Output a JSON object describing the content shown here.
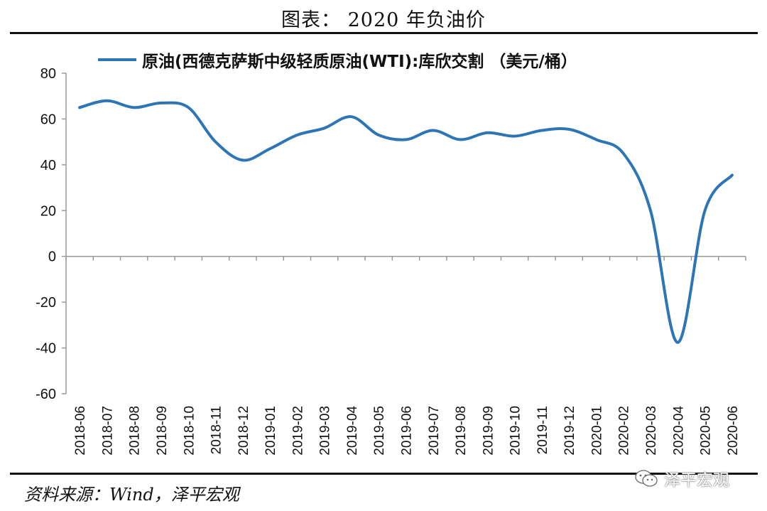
{
  "header": {
    "title": "图表： 2020 年负油价"
  },
  "legend": {
    "label": "原油(西德克萨斯中级轻质原油(WTI):库欣交割 （美元/桶）",
    "color": "#2e75b6"
  },
  "footer": {
    "source": "资料来源：Wind，泽平宏观",
    "watermark": "泽平宏观",
    "watermark_icon": "wechat-icon"
  },
  "chart_data": {
    "type": "line",
    "title": "2020 年负油价",
    "x": [
      "2018-06",
      "2018-07",
      "2018-08",
      "2018-09",
      "2018-10",
      "2018-11",
      "2018-12",
      "2019-01",
      "2019-02",
      "2019-03",
      "2019-04",
      "2019-05",
      "2019-06",
      "2019-07",
      "2019-08",
      "2019-09",
      "2019-10",
      "2019-11",
      "2019-12",
      "2020-01",
      "2020-02",
      "2020-03",
      "2020-04",
      "2020-05",
      "2020-06"
    ],
    "series": [
      {
        "name": "原油(西德克萨斯中级轻质原油(WTI):库欣交割 （美元/桶）",
        "color": "#2e75b6",
        "values": [
          65,
          68,
          65,
          67,
          65,
          50,
          42,
          47,
          53,
          56,
          61,
          53,
          51,
          55,
          51,
          54,
          52.5,
          55,
          55.5,
          51,
          45,
          20,
          -37.6,
          20,
          35.5
        ]
      }
    ],
    "yticks": [
      80,
      60,
      40,
      20,
      0,
      -20,
      -40,
      -60
    ],
    "ylim": [
      -60,
      80
    ],
    "grid": false,
    "legend_position": "top"
  }
}
